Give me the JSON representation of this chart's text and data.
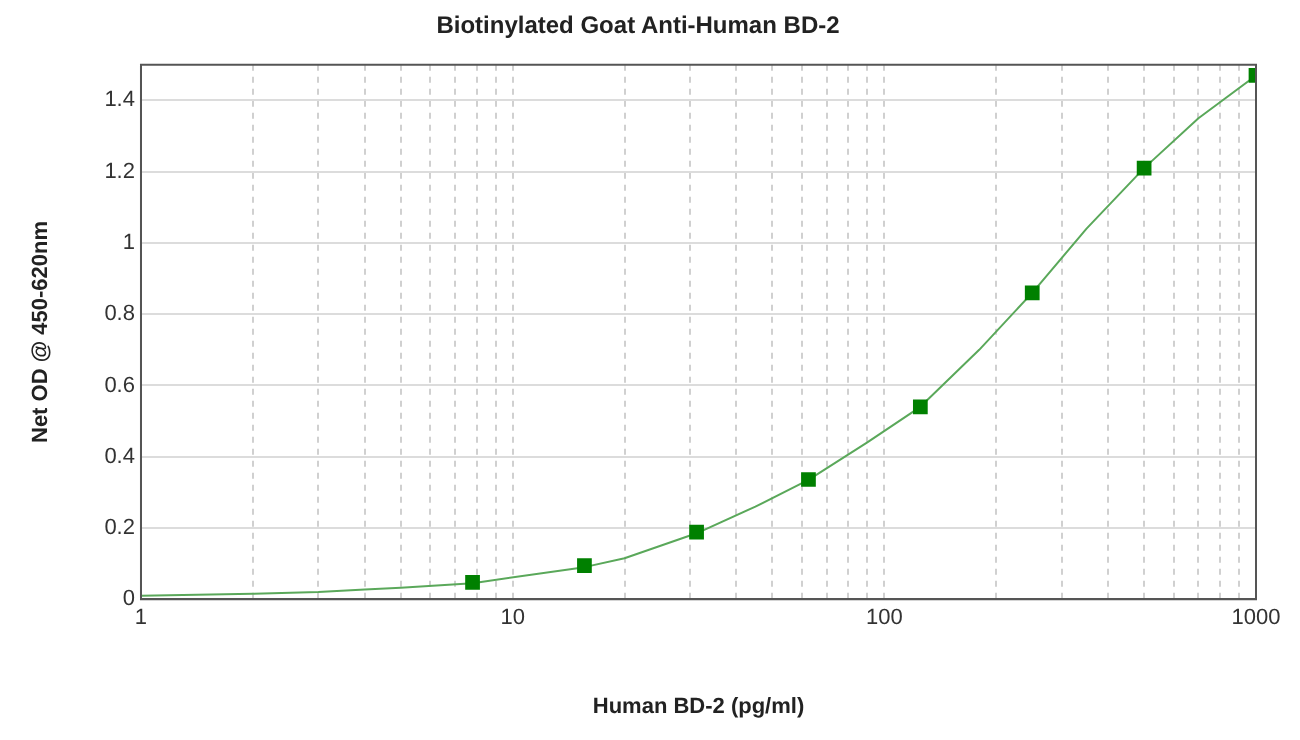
{
  "chart_data": {
    "type": "scatter",
    "title": "Biotinylated Goat Anti-Human BD-2",
    "xlabel": "Human BD-2 (pg/ml)",
    "ylabel": "Net OD @ 450-620nm",
    "log": "x",
    "grid": true,
    "legend": false,
    "marker": "square",
    "xlim": [
      1,
      1000
    ],
    "xticks": [
      1,
      {
        "value": 2,
        "label": null
      },
      {
        "value": 3,
        "label": null
      },
      {
        "value": 4,
        "label": null
      },
      {
        "value": 5,
        "label": null
      },
      {
        "value": 6,
        "label": null
      },
      {
        "value": 7,
        "label": null
      },
      {
        "value": 8,
        "label": null
      },
      {
        "value": 9,
        "label": null
      },
      10,
      {
        "value": 20,
        "label": null
      },
      {
        "value": 30,
        "label": null
      },
      {
        "value": 40,
        "label": null
      },
      {
        "value": 50,
        "label": null
      },
      {
        "value": 60,
        "label": null
      },
      {
        "value": 70,
        "label": null
      },
      {
        "value": 80,
        "label": null
      },
      {
        "value": 90,
        "label": null
      },
      100,
      {
        "value": 200,
        "label": null
      },
      {
        "value": 300,
        "label": null
      },
      {
        "value": 400,
        "label": null
      },
      {
        "value": 500,
        "label": null
      },
      {
        "value": 600,
        "label": null
      },
      {
        "value": 700,
        "label": null
      },
      {
        "value": 800,
        "label": null
      },
      {
        "value": 900,
        "label": null
      },
      1000
    ],
    "ylim": [
      0,
      1.5
    ],
    "yticks": [
      0,
      0.2,
      0.4,
      0.6,
      0.8,
      1,
      1.2,
      1.4
    ],
    "series": [
      {
        "type": "line",
        "marker": "none",
        "color": "#5aa85a",
        "x": [
          1,
          2,
          3,
          4,
          5,
          7.8,
          15.6,
          20,
          31.25,
          45,
          62.5,
          90,
          125,
          180,
          250,
          350,
          500,
          700,
          1000
        ],
        "values": [
          0.01,
          0.015,
          0.02,
          0.027,
          0.032,
          0.045,
          0.09,
          0.115,
          0.185,
          0.26,
          0.335,
          0.44,
          0.54,
          0.7,
          0.86,
          1.04,
          1.21,
          1.35,
          1.47
        ]
      },
      {
        "type": "scatter",
        "color": "#008000",
        "x": [
          7.8,
          15.6,
          31.25,
          62.5,
          125,
          250,
          500,
          1000
        ],
        "values": [
          0.047,
          0.094,
          0.188,
          0.336,
          0.54,
          0.86,
          1.21,
          1.47
        ]
      }
    ]
  }
}
